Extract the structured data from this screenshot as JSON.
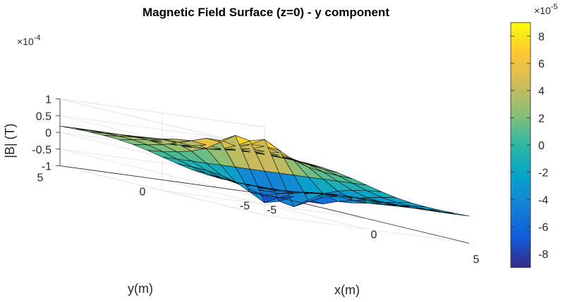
{
  "chart_data": {
    "type": "surface",
    "title": "Magnetic Field Surface (z=0) - y component",
    "xlabel": "x(m)",
    "ylabel": "y(m)",
    "zlabel": "|B| (T)",
    "x_range": [
      -5,
      5
    ],
    "y_range": [
      -5,
      5
    ],
    "z_range": [
      -0.0001,
      0.0001
    ],
    "x_ticks": [
      "-5",
      "0",
      "5"
    ],
    "y_ticks": [
      "-5",
      "0",
      "5"
    ],
    "z_ticks": [
      "-1",
      "-0.5",
      "0",
      "0.5",
      "1"
    ],
    "z_exponent": "×10",
    "z_exponent_power": "-4",
    "grid": true,
    "colormap": "parula",
    "colorbar": {
      "range": [
        -9e-05,
        9e-05
      ],
      "ticks": [
        "8",
        "6",
        "4",
        "2",
        "0",
        "-2",
        "-4",
        "-6",
        "-8"
      ],
      "tick_values": [
        8,
        6,
        4,
        2,
        0,
        -2,
        -4,
        -6,
        -8
      ],
      "exponent": "×10",
      "exponent_power": "-5"
    },
    "grid_points": 15,
    "peak_value": 9e-05,
    "trough_value": -9e-05
  }
}
